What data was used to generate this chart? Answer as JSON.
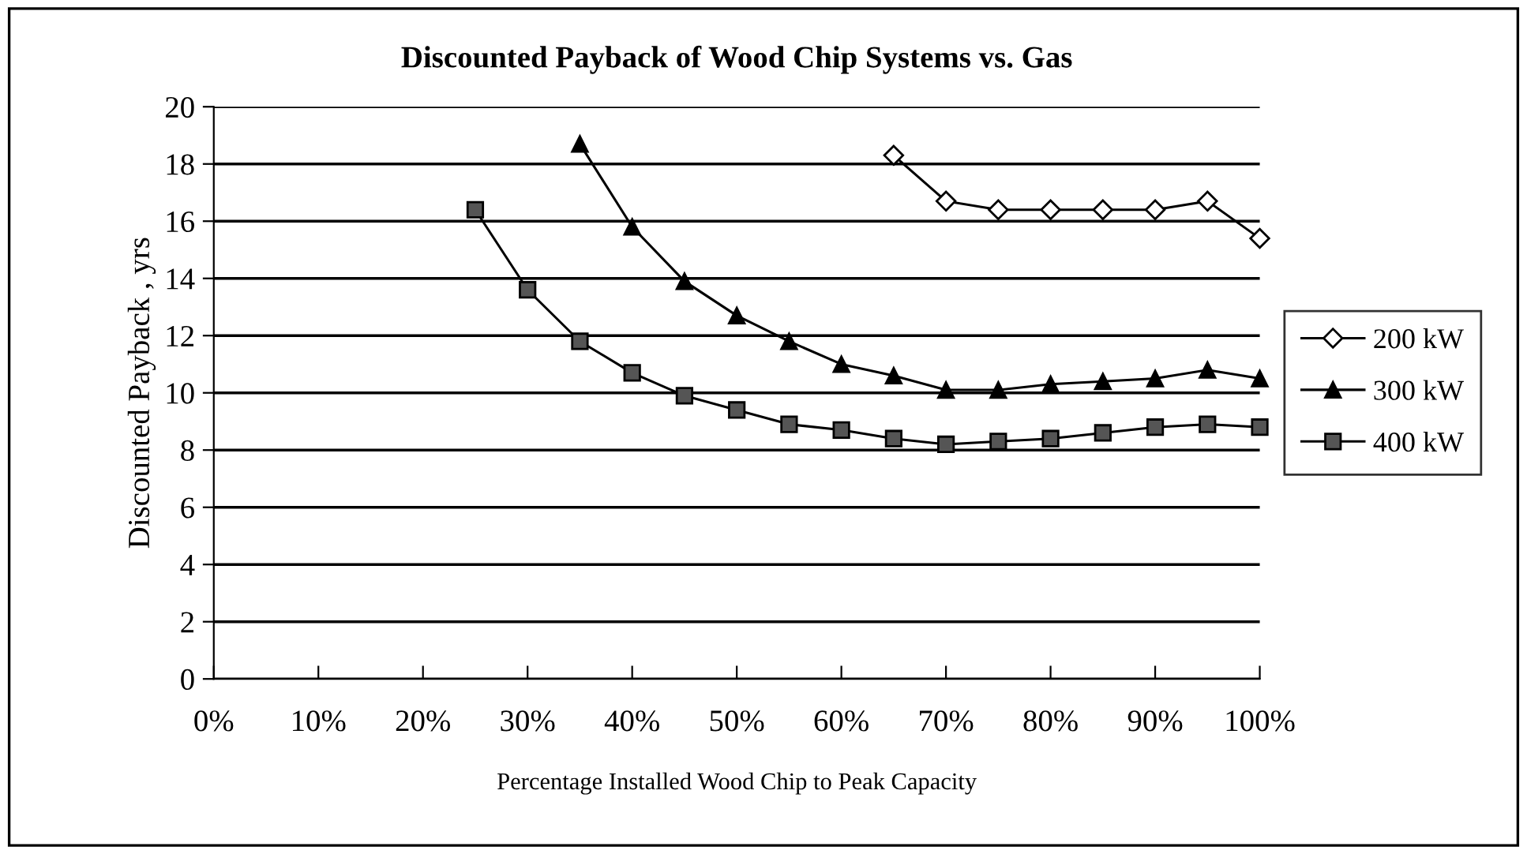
{
  "chart_data": {
    "type": "line",
    "title": "Discounted Payback of Wood Chip Systems vs. Gas",
    "xlabel": "Percentage Installed Wood Chip to Peak Capacity",
    "ylabel": "Discounted Payback , yrs",
    "xlim": [
      0,
      100
    ],
    "xticks": [
      {
        "value": 0,
        "label": "0%"
      },
      {
        "value": 10,
        "label": "10%"
      },
      {
        "value": 20,
        "label": "20%"
      },
      {
        "value": 30,
        "label": "30%"
      },
      {
        "value": 40,
        "label": "40%"
      },
      {
        "value": 50,
        "label": "50%"
      },
      {
        "value": 60,
        "label": "60%"
      },
      {
        "value": 70,
        "label": "70%"
      },
      {
        "value": 80,
        "label": "80%"
      },
      {
        "value": 90,
        "label": "90%"
      },
      {
        "value": 100,
        "label": "100%"
      }
    ],
    "ylim": [
      0,
      20
    ],
    "yticks": [
      0,
      2,
      4,
      6,
      8,
      10,
      12,
      14,
      16,
      18,
      20
    ],
    "grid": "y",
    "legend": "right",
    "series": [
      {
        "name": "200 kW",
        "color": "#000000",
        "marker": "diamond",
        "x": [
          65,
          70,
          75,
          80,
          85,
          90,
          95,
          100
        ],
        "values": [
          18.3,
          16.7,
          16.4,
          16.4,
          16.4,
          16.4,
          16.7,
          15.4
        ]
      },
      {
        "name": "300 kW",
        "color": "#000000",
        "marker": "triangle",
        "x": [
          35,
          40,
          45,
          50,
          55,
          60,
          65,
          70,
          75,
          80,
          85,
          90,
          95,
          100
        ],
        "values": [
          18.7,
          15.8,
          13.9,
          12.7,
          11.8,
          11.0,
          10.6,
          10.1,
          10.1,
          10.3,
          10.4,
          10.5,
          10.8,
          10.5
        ]
      },
      {
        "name": "400 kW",
        "color": "#000000",
        "marker": "square",
        "x": [
          25,
          30,
          35,
          40,
          45,
          50,
          55,
          60,
          65,
          70,
          75,
          80,
          85,
          90,
          95,
          100
        ],
        "values": [
          16.4,
          13.6,
          11.8,
          10.7,
          9.9,
          9.4,
          8.9,
          8.7,
          8.4,
          8.2,
          8.3,
          8.4,
          8.6,
          8.8,
          8.9,
          8.8
        ]
      }
    ]
  }
}
